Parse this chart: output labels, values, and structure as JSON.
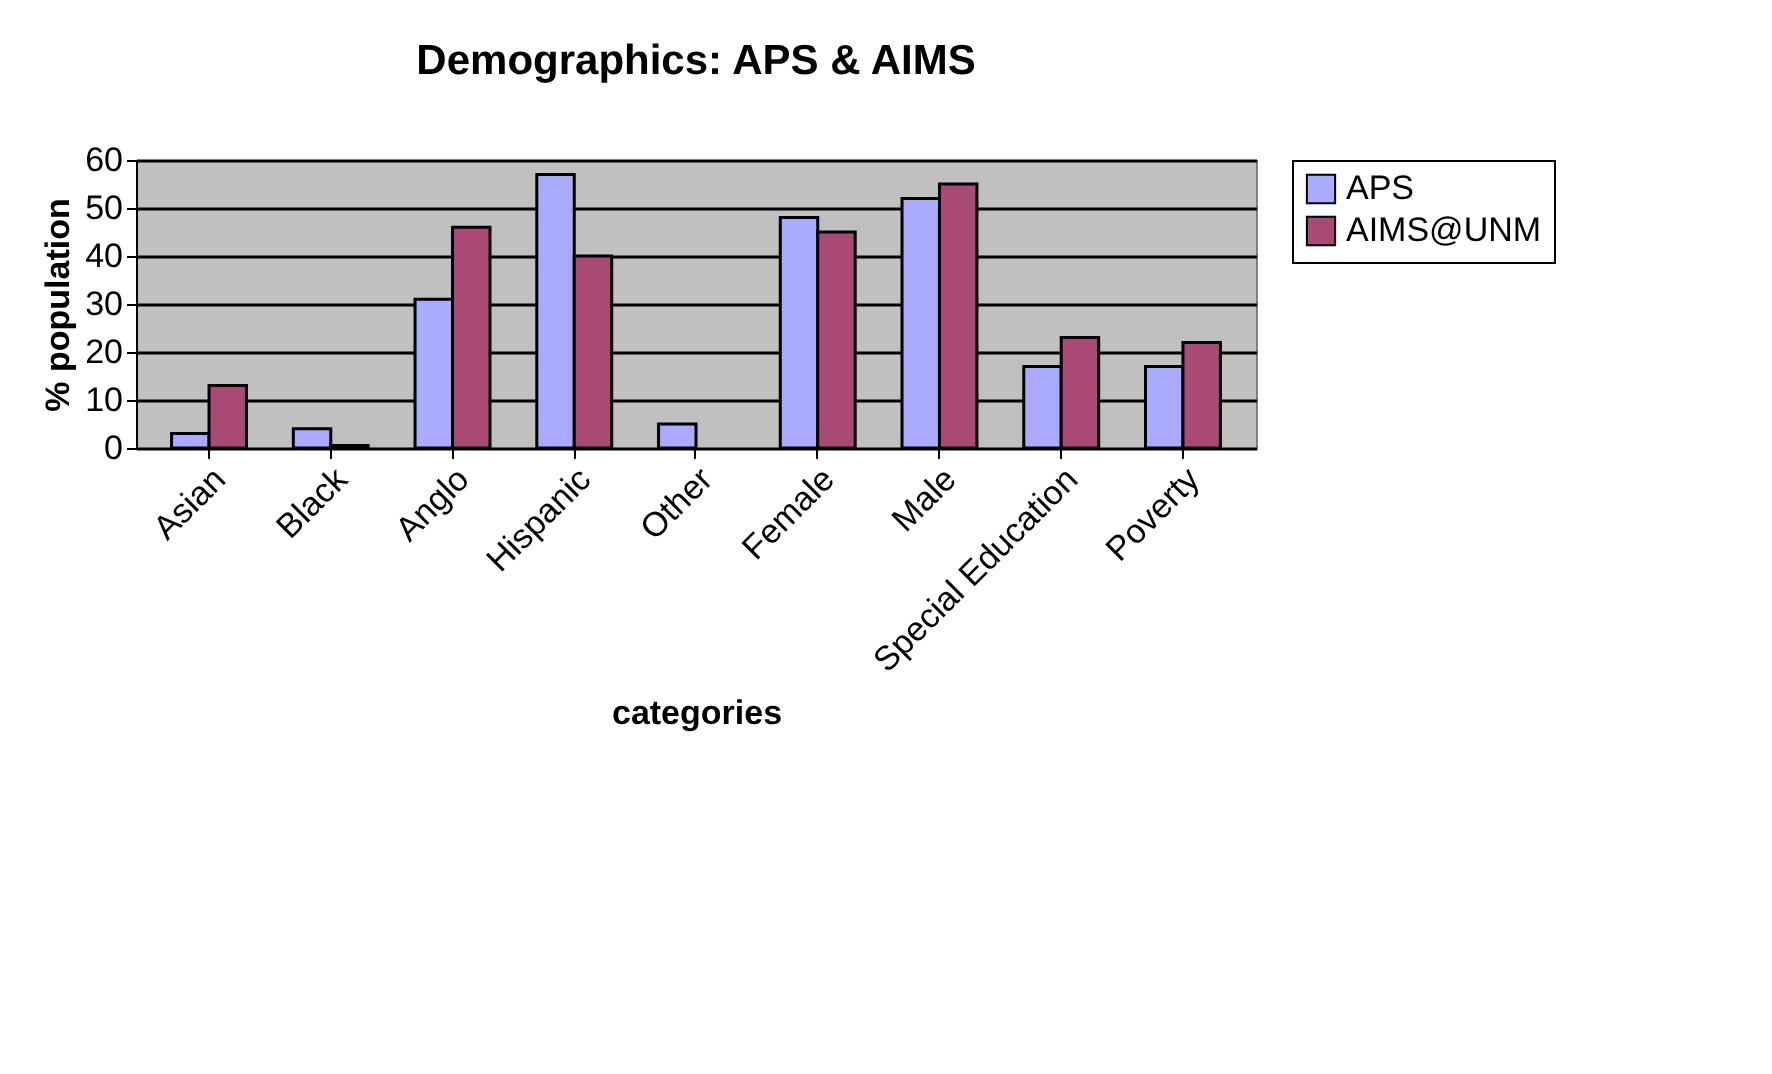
{
  "chart_data": {
    "type": "bar",
    "title": "Demographics: APS & AIMS",
    "xlabel": "categories",
    "ylabel": "% population",
    "categories": [
      "Asian",
      "Black",
      "Anglo",
      "Hispanic",
      "Other",
      "Female",
      "Male",
      "Special Education",
      "Poverty"
    ],
    "series": [
      {
        "name": "APS",
        "color": "#aaaaff",
        "values": [
          3,
          4,
          31,
          57,
          5,
          48,
          52,
          17,
          17
        ]
      },
      {
        "name": "AIMS@UNM",
        "color": "#a94a76",
        "values": [
          13,
          0.5,
          46,
          40,
          null,
          45,
          55,
          23,
          22
        ]
      }
    ],
    "ylim": [
      0,
      60
    ],
    "yticks": [
      0,
      10,
      20,
      30,
      40,
      50,
      60
    ],
    "grid": "y",
    "legend": "right"
  }
}
